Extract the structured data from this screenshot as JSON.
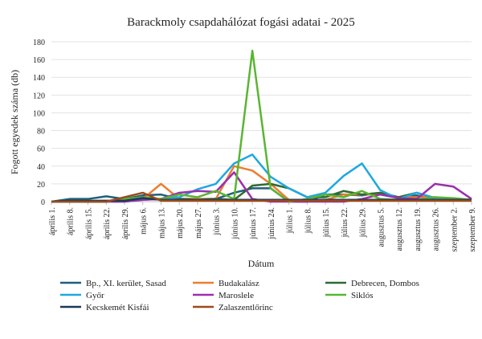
{
  "chart_data": {
    "type": "line",
    "title": "Barackmoly csapdahálózat fogási adatai - 2025",
    "xlabel": "Dátum",
    "ylabel": "Fogott egyedek száma (db)",
    "ylim": [
      0,
      180
    ],
    "yticks": [
      0,
      20,
      40,
      60,
      80,
      100,
      120,
      140,
      160,
      180
    ],
    "grid": true,
    "legend_position": "bottom",
    "categories": [
      "április 1.",
      "április 8.",
      "április 15.",
      "április 22.",
      "április 29.",
      "május 6.",
      "május 13.",
      "május 20.",
      "május 27.",
      "június 3.",
      "június 10.",
      "június 17.",
      "június 24.",
      "július 1.",
      "július 8.",
      "július 15.",
      "július 22.",
      "július 29.",
      "augusztus 5.",
      "augusztus 12.",
      "augusztus 19.",
      "augusztus 26.",
      "szeptember 2.",
      "szeptember 9."
    ],
    "series": [
      {
        "name": "Bp., XI. kerület, Sasad",
        "color": "#1f5f7a",
        "values": [
          0,
          3,
          3,
          6,
          3,
          7,
          8,
          3,
          3,
          3,
          10,
          15,
          15,
          0,
          0,
          8,
          8,
          7,
          10,
          5,
          7,
          2,
          2,
          2
        ]
      },
      {
        "name": "Budakalász",
        "color": "#ed7d31",
        "values": [
          0,
          0,
          0,
          0,
          2,
          3,
          20,
          3,
          3,
          3,
          40,
          35,
          20,
          2,
          2,
          2,
          8,
          8,
          8,
          5,
          5,
          5,
          3,
          2
        ]
      },
      {
        "name": "Debrecen, Dombos",
        "color": "#2e6b30",
        "values": [
          0,
          0,
          0,
          0,
          2,
          5,
          2,
          3,
          2,
          3,
          2,
          18,
          20,
          15,
          5,
          5,
          12,
          8,
          10,
          5,
          10,
          4,
          3,
          2
        ]
      },
      {
        "name": "Győr",
        "color": "#1fa8e0",
        "values": [
          0,
          0,
          0,
          0,
          0,
          2,
          3,
          5,
          14,
          20,
          43,
          53,
          28,
          15,
          5,
          10,
          29,
          43,
          13,
          3,
          10,
          4,
          3,
          2
        ]
      },
      {
        "name": "Maroslele",
        "color": "#9b2fae",
        "values": [
          0,
          0,
          0,
          0,
          0,
          2,
          3,
          10,
          12,
          11,
          33,
          3,
          0,
          0,
          0,
          0,
          0,
          3,
          8,
          4,
          3,
          20,
          17,
          3
        ]
      },
      {
        "name": "Siklós",
        "color": "#5ab532",
        "values": [
          0,
          0,
          0,
          0,
          3,
          5,
          3,
          8,
          5,
          12,
          3,
          170,
          15,
          0,
          3,
          8,
          5,
          12,
          3,
          2,
          2,
          5,
          4,
          2
        ]
      },
      {
        "name": "Kecskemét Kisfái",
        "color": "#1b3a57",
        "values": [
          0,
          1,
          1,
          1,
          1,
          4,
          2,
          2,
          2,
          2,
          2,
          2,
          2,
          2,
          2,
          2,
          2,
          2,
          2,
          2,
          2,
          2,
          2,
          2
        ]
      },
      {
        "name": "Zalaszentlőrinc",
        "color": "#9c4a1a",
        "values": [
          0,
          0,
          0,
          0,
          5,
          10,
          1,
          1,
          1,
          1,
          1,
          1,
          1,
          1,
          1,
          1,
          1,
          1,
          1,
          1,
          1,
          1,
          1,
          1
        ]
      }
    ]
  }
}
